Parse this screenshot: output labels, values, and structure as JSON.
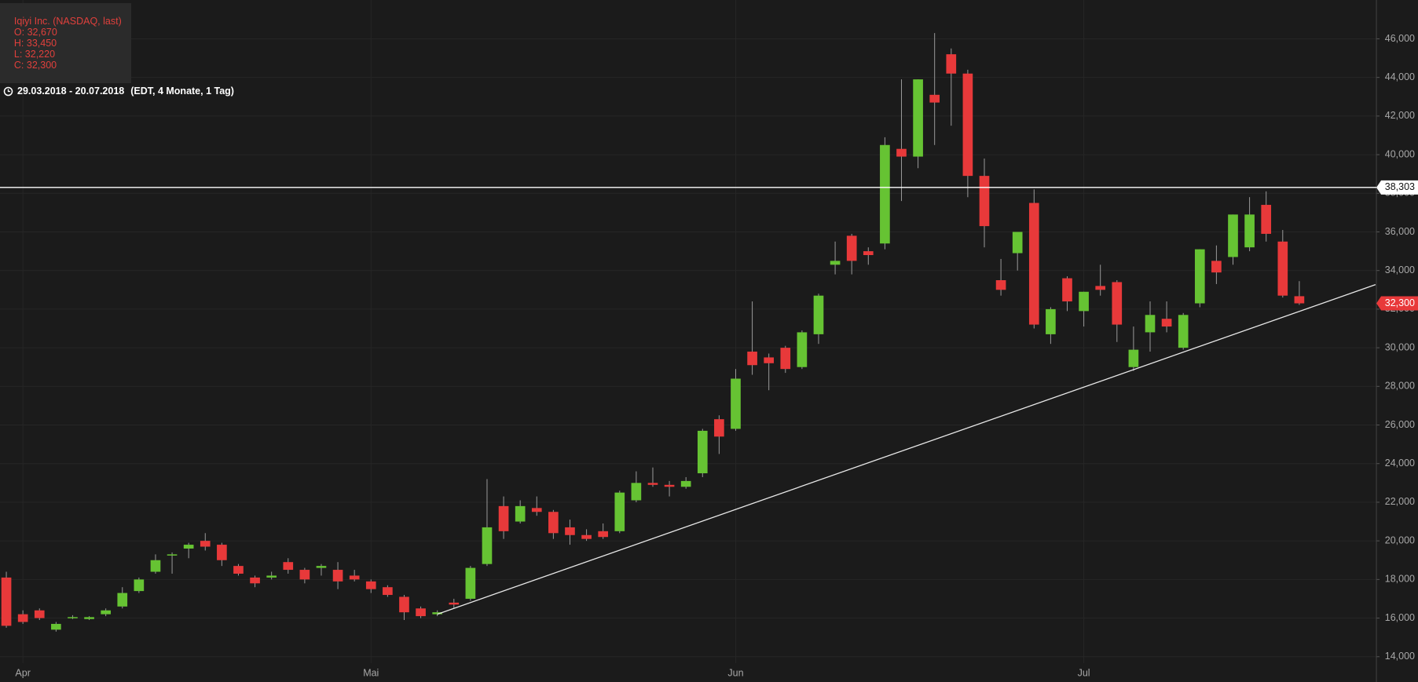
{
  "chart_data": {
    "type": "candlestick",
    "header": {
      "title": "Iqiyi Inc. (NASDAQ, last)",
      "ohlc": [
        "O: 32,670",
        "H: 33,450",
        "L: 32,220",
        "C: 32,300"
      ],
      "range": "29.03.2018 - 20.07.2018",
      "info": "(EDT, 4 Monate, 1 Tag)"
    },
    "categories": [
      null,
      "Apr",
      null,
      null,
      null,
      null,
      null,
      null,
      null,
      null,
      null,
      null,
      null,
      null,
      null,
      null,
      null,
      null,
      null,
      null,
      null,
      null,
      "Mai",
      null,
      null,
      null,
      null,
      null,
      null,
      null,
      null,
      null,
      null,
      null,
      null,
      null,
      null,
      null,
      null,
      null,
      null,
      null,
      null,
      null,
      "Jun",
      null,
      null,
      null,
      null,
      null,
      null,
      null,
      null,
      null,
      null,
      null,
      null,
      null,
      null,
      null,
      null,
      null,
      null,
      null,
      null,
      "Jul",
      null,
      null,
      null,
      null,
      null,
      null,
      null,
      null,
      null,
      null,
      null,
      null,
      null
    ],
    "open": [
      18.1,
      16.2,
      16.4,
      15.4,
      16.0,
      15.95,
      16.2,
      16.6,
      17.4,
      18.4,
      19.25,
      19.6,
      20.0,
      19.8,
      18.7,
      18.1,
      18.1,
      18.9,
      18.5,
      18.6,
      18.5,
      18.2,
      17.9,
      17.6,
      17.1,
      16.5,
      16.2,
      16.8,
      17.0,
      18.8,
      21.8,
      21.0,
      21.7,
      21.5,
      20.7,
      20.3,
      20.5,
      20.5,
      22.1,
      23.0,
      22.9,
      22.8,
      23.5,
      26.3,
      25.8,
      29.8,
      29.5,
      30.0,
      29.0,
      30.7,
      34.3,
      35.8,
      35.0,
      35.4,
      40.3,
      39.9,
      43.1,
      45.2,
      44.2,
      38.9,
      33.5,
      34.9,
      37.5,
      30.7,
      33.6,
      31.9,
      33.2,
      33.4,
      29.0,
      30.8,
      31.5,
      30.0,
      32.3,
      34.5,
      34.7,
      35.2,
      37.4,
      35.5,
      32.67
    ],
    "high": [
      18.4,
      16.4,
      16.5,
      15.8,
      16.15,
      16.1,
      16.5,
      17.6,
      18.1,
      19.3,
      19.4,
      19.9,
      20.4,
      19.9,
      18.8,
      18.2,
      18.4,
      19.1,
      18.6,
      18.8,
      18.9,
      18.5,
      18.0,
      17.7,
      17.2,
      16.6,
      16.4,
      17.0,
      18.7,
      23.2,
      22.3,
      22.1,
      22.3,
      21.6,
      21.1,
      20.6,
      20.9,
      22.6,
      23.6,
      23.8,
      23.1,
      23.3,
      25.8,
      26.5,
      28.9,
      32.4,
      29.7,
      30.1,
      30.9,
      32.8,
      35.5,
      35.9,
      35.2,
      40.9,
      43.9,
      43.9,
      46.3,
      45.5,
      44.4,
      39.8,
      34.6,
      36.0,
      38.2,
      32.1,
      33.7,
      32.9,
      34.3,
      33.5,
      31.1,
      32.4,
      32.4,
      31.8,
      35.1,
      35.3,
      36.9,
      37.8,
      38.1,
      36.1,
      33.45
    ],
    "low": [
      15.5,
      15.7,
      15.9,
      15.3,
      15.95,
      15.9,
      16.1,
      16.5,
      17.3,
      18.3,
      18.3,
      19.1,
      19.5,
      18.7,
      18.2,
      17.6,
      18.0,
      18.3,
      17.8,
      18.2,
      17.5,
      17.9,
      17.3,
      17.1,
      15.9,
      16.0,
      16.1,
      16.5,
      16.9,
      18.7,
      20.1,
      20.9,
      21.3,
      20.1,
      19.8,
      20.0,
      20.1,
      20.4,
      22.0,
      22.8,
      22.3,
      22.7,
      23.3,
      24.5,
      25.7,
      28.6,
      27.8,
      28.7,
      28.9,
      30.2,
      33.8,
      33.8,
      34.3,
      35.1,
      37.6,
      39.3,
      40.5,
      41.5,
      37.8,
      35.2,
      32.7,
      34.0,
      31.0,
      30.2,
      31.9,
      31.1,
      32.7,
      30.3,
      28.8,
      29.8,
      30.8,
      29.9,
      32.1,
      33.3,
      34.3,
      35.0,
      35.5,
      32.6,
      32.22
    ],
    "close": [
      15.6,
      15.8,
      16.0,
      15.7,
      16.05,
      16.05,
      16.4,
      17.3,
      18.0,
      19.0,
      19.3,
      19.8,
      19.7,
      19.0,
      18.3,
      17.8,
      18.2,
      18.5,
      18.0,
      18.7,
      17.9,
      18.0,
      17.5,
      17.2,
      16.3,
      16.1,
      16.3,
      16.7,
      18.6,
      20.7,
      20.5,
      21.8,
      21.5,
      20.4,
      20.3,
      20.1,
      20.2,
      22.5,
      23.0,
      22.9,
      22.8,
      23.1,
      25.7,
      25.4,
      28.4,
      29.1,
      29.2,
      28.9,
      30.8,
      32.7,
      34.5,
      34.5,
      34.8,
      40.5,
      39.9,
      43.9,
      42.7,
      44.2,
      38.9,
      36.3,
      33.0,
      36.0,
      31.2,
      32.0,
      32.4,
      32.9,
      33.0,
      31.2,
      29.9,
      31.7,
      31.1,
      31.7,
      35.1,
      33.9,
      36.9,
      36.9,
      35.9,
      32.7,
      32.3
    ],
    "up_color": "#66c333",
    "down_color": "#e8393a",
    "ylim": [
      12.69,
      48.01
    ],
    "yticks": [
      {
        "value": 14,
        "label": "14,000"
      },
      {
        "value": 16,
        "label": "16,000"
      },
      {
        "value": 18,
        "label": "18,000"
      },
      {
        "value": 20,
        "label": "20,000"
      },
      {
        "value": 22,
        "label": "22,000"
      },
      {
        "value": 24,
        "label": "24,000"
      },
      {
        "value": 26,
        "label": "26,000"
      },
      {
        "value": 28,
        "label": "28,000"
      },
      {
        "value": 30,
        "label": "30,000"
      },
      {
        "value": 32,
        "label": "32,000"
      },
      {
        "value": 34,
        "label": "34,000"
      },
      {
        "value": 36,
        "label": "36,000"
      },
      {
        "value": 38,
        "label": "38,000"
      },
      {
        "value": 40,
        "label": "40,000"
      },
      {
        "value": 42,
        "label": "42,000"
      },
      {
        "value": 44,
        "label": "44,000"
      },
      {
        "value": 46,
        "label": "46,000"
      }
    ],
    "grid": true,
    "hline": {
      "value": 38.303,
      "label": "38,303"
    },
    "last_price": {
      "value": 32.3,
      "label": "32,300"
    },
    "trendline": {
      "x": [
        26,
        82.6
      ],
      "y": [
        16.2,
        33.27
      ]
    }
  }
}
